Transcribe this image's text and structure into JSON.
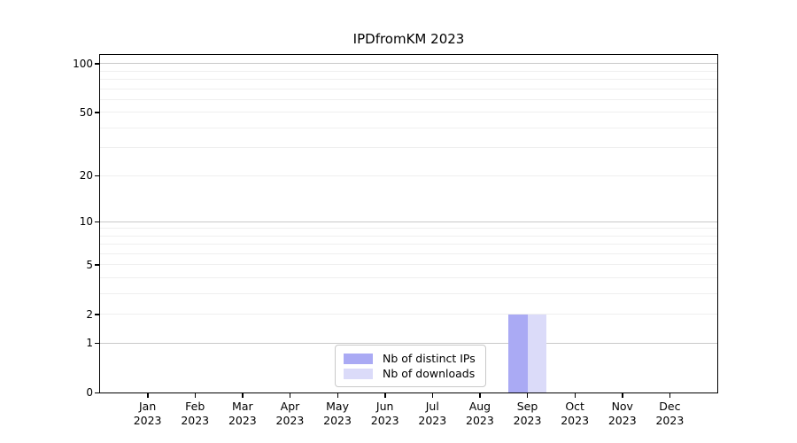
{
  "chart_data": {
    "type": "bar",
    "title": "IPDfromKM 2023",
    "x": [
      {
        "month": "Jan",
        "year": "2023"
      },
      {
        "month": "Feb",
        "year": "2023"
      },
      {
        "month": "Mar",
        "year": "2023"
      },
      {
        "month": "Apr",
        "year": "2023"
      },
      {
        "month": "May",
        "year": "2023"
      },
      {
        "month": "Jun",
        "year": "2023"
      },
      {
        "month": "Jul",
        "year": "2023"
      },
      {
        "month": "Aug",
        "year": "2023"
      },
      {
        "month": "Sep",
        "year": "2023"
      },
      {
        "month": "Oct",
        "year": "2023"
      },
      {
        "month": "Nov",
        "year": "2023"
      },
      {
        "month": "Dec",
        "year": "2023"
      }
    ],
    "series": [
      {
        "name": "Nb of distinct IPs",
        "color": "#aaaaf4",
        "values": [
          0,
          0,
          0,
          0,
          0,
          0,
          0,
          0,
          2,
          0,
          0,
          0
        ]
      },
      {
        "name": "Nb of downloads",
        "color": "#dbdbf9",
        "values": [
          0,
          0,
          0,
          0,
          0,
          0,
          0,
          0,
          2,
          0,
          0,
          0
        ]
      }
    ],
    "y_axis": {
      "scale": "log1p",
      "ticks": [
        0,
        1,
        2,
        5,
        10,
        20,
        50,
        100
      ],
      "max": 113,
      "decade_gridlines": [
        1,
        10,
        100
      ],
      "minor_gridlines": [
        2,
        3,
        4,
        5,
        6,
        7,
        8,
        9,
        20,
        30,
        40,
        50,
        60,
        70,
        80,
        90
      ]
    },
    "legend": {
      "position": "lower center",
      "entries": [
        "Nb of distinct IPs",
        "Nb of downloads"
      ]
    },
    "colors": {
      "grid_decade": "#c9c9c9",
      "grid_minor": "#efefef",
      "axis": "#000000",
      "text": "#000000",
      "background": "#ffffff"
    },
    "layout_hints": {
      "bar_width_fraction": 0.4,
      "grid": "horizontal only",
      "legend_border": "#c9c9c9"
    }
  }
}
